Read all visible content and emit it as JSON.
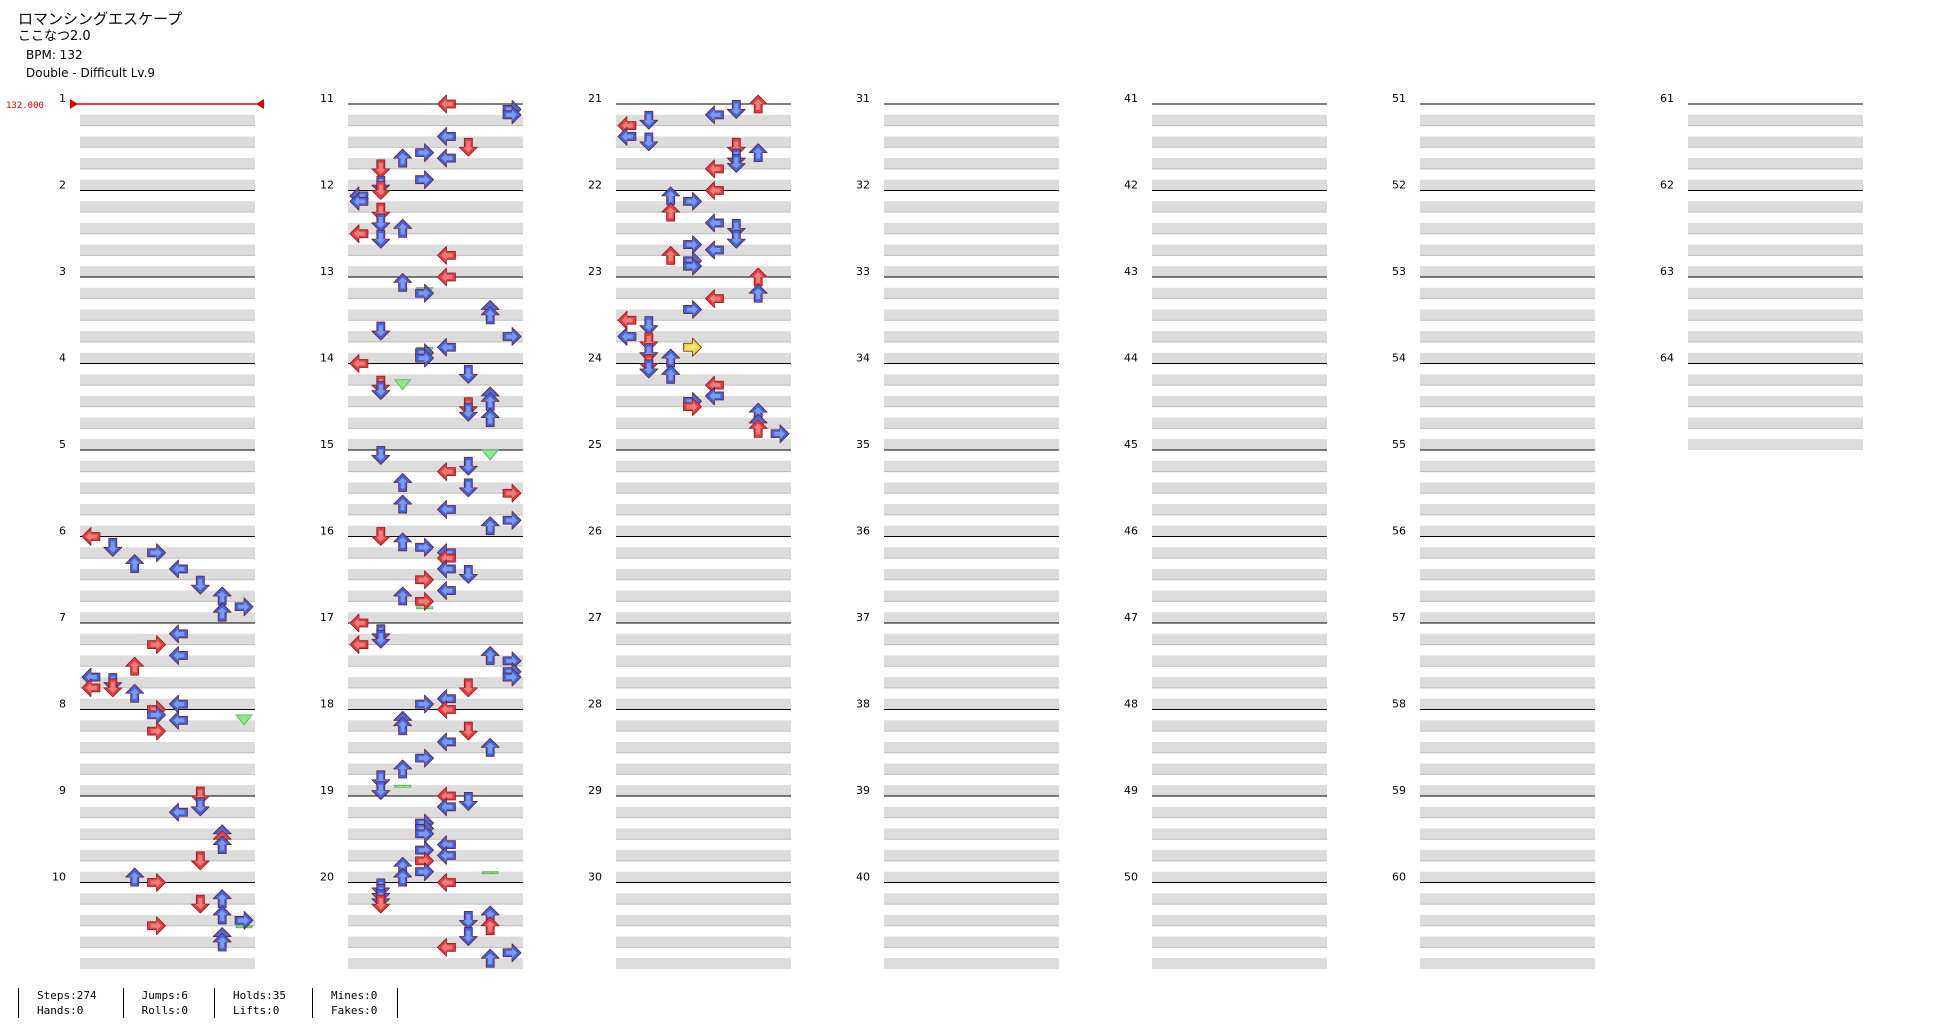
{
  "header": {
    "title": "ロマンシングエスケープ",
    "artist": "ここなつ2.0",
    "bpm": "BPM: 132",
    "difficulty": "Double - Difficult Lv.9"
  },
  "bpm_marker": "132.000",
  "stats": [
    {
      "a": "Steps:274",
      "b": "Hands:0"
    },
    {
      "a": "Jumps:6",
      "b": "Rolls:0"
    },
    {
      "a": "Holds:35",
      "b": "Lifts:0"
    },
    {
      "a": "Mines:0",
      "b": "Fakes:0"
    }
  ],
  "chart": {
    "measures": 64,
    "measures_per_column": 10,
    "lanes": 8,
    "colors": {
      "quarter": "#e83a3a",
      "eighth": "#3a64e8",
      "sixteenth": "#e8d83a",
      "hold": "#8ee88e",
      "stripe": "#dcdcdc",
      "bpm": "#e00000"
    },
    "notes": [
      [
        6,
        0,
        0
      ],
      [
        6,
        2,
        1
      ],
      [
        6,
        3,
        3
      ],
      [
        6,
        5,
        2
      ],
      [
        6,
        6,
        4
      ],
      [
        6,
        9,
        5
      ],
      [
        6,
        11,
        6
      ],
      [
        6,
        13,
        7
      ],
      [
        6,
        14,
        6
      ],
      [
        7,
        2,
        4
      ],
      [
        7,
        4,
        3
      ],
      [
        7,
        6,
        4
      ],
      [
        7,
        8,
        2
      ],
      [
        7,
        10,
        0
      ],
      [
        7,
        11,
        1
      ],
      [
        7,
        12,
        1
      ],
      [
        7,
        12,
        0
      ],
      [
        7,
        13,
        2
      ],
      [
        7,
        15,
        4
      ],
      [
        8,
        0,
        3
      ],
      [
        8,
        1,
        3
      ],
      [
        8,
        2,
        4
      ],
      [
        8,
        4,
        3
      ],
      [
        9,
        0,
        5
      ],
      [
        9,
        2,
        5
      ],
      [
        9,
        3,
        4
      ],
      [
        9,
        7,
        6
      ],
      [
        9,
        8,
        6
      ],
      [
        9,
        9,
        6
      ],
      [
        9,
        12,
        5
      ],
      [
        9,
        15,
        2
      ],
      [
        10,
        0,
        3
      ],
      [
        10,
        3,
        6
      ],
      [
        10,
        4,
        5
      ],
      [
        10,
        6,
        6
      ],
      [
        10,
        7,
        7
      ],
      [
        10,
        8,
        3
      ],
      [
        10,
        10,
        6
      ],
      [
        10,
        11,
        6
      ],
      [
        11,
        0,
        4
      ],
      [
        11,
        1,
        7
      ],
      [
        11,
        2,
        7
      ],
      [
        11,
        6,
        4
      ],
      [
        11,
        8,
        5
      ],
      [
        11,
        9,
        3
      ],
      [
        11,
        10,
        4
      ],
      [
        11,
        10,
        2
      ],
      [
        11,
        12,
        1
      ],
      [
        11,
        14,
        3
      ],
      [
        11,
        15,
        1
      ],
      [
        12,
        0,
        1
      ],
      [
        12,
        1,
        0
      ],
      [
        12,
        2,
        0
      ],
      [
        12,
        4,
        1
      ],
      [
        12,
        6,
        1
      ],
      [
        12,
        7,
        2
      ],
      [
        12,
        8,
        0
      ],
      [
        12,
        9,
        1
      ],
      [
        12,
        12,
        4
      ],
      [
        13,
        0,
        4
      ],
      [
        13,
        1,
        2
      ],
      [
        13,
        3,
        3
      ],
      [
        13,
        6,
        6
      ],
      [
        13,
        7,
        6
      ],
      [
        13,
        10,
        1
      ],
      [
        13,
        11,
        7
      ],
      [
        13,
        13,
        4
      ],
      [
        13,
        14,
        3
      ],
      [
        13,
        15,
        3
      ],
      [
        14,
        0,
        0
      ],
      [
        14,
        2,
        5
      ],
      [
        14,
        4,
        1
      ],
      [
        14,
        5,
        1
      ],
      [
        14,
        6,
        6
      ],
      [
        14,
        7,
        6
      ],
      [
        14,
        8,
        5
      ],
      [
        14,
        9,
        5
      ],
      [
        14,
        10,
        6
      ],
      [
        15,
        1,
        1
      ],
      [
        15,
        3,
        5
      ],
      [
        15,
        4,
        4
      ],
      [
        15,
        6,
        2
      ],
      [
        15,
        7,
        5
      ],
      [
        15,
        8,
        7
      ],
      [
        15,
        10,
        2
      ],
      [
        15,
        11,
        4
      ],
      [
        15,
        13,
        7
      ],
      [
        15,
        14,
        6
      ],
      [
        16,
        0,
        1
      ],
      [
        16,
        1,
        2
      ],
      [
        16,
        2,
        3
      ],
      [
        16,
        3,
        4
      ],
      [
        16,
        4,
        4
      ],
      [
        16,
        6,
        4
      ],
      [
        16,
        7,
        5
      ],
      [
        16,
        8,
        3
      ],
      [
        16,
        10,
        4
      ],
      [
        16,
        11,
        2
      ],
      [
        16,
        12,
        3
      ],
      [
        17,
        0,
        0
      ],
      [
        17,
        2,
        1
      ],
      [
        17,
        3,
        1
      ],
      [
        17,
        4,
        0
      ],
      [
        17,
        6,
        6
      ],
      [
        17,
        7,
        7
      ],
      [
        17,
        9,
        7
      ],
      [
        17,
        10,
        7
      ],
      [
        17,
        12,
        5
      ],
      [
        17,
        14,
        4
      ],
      [
        17,
        15,
        3
      ],
      [
        18,
        0,
        4
      ],
      [
        18,
        2,
        2
      ],
      [
        18,
        3,
        2
      ],
      [
        18,
        4,
        5
      ],
      [
        18,
        6,
        4
      ],
      [
        18,
        7,
        6
      ],
      [
        18,
        9,
        3
      ],
      [
        18,
        11,
        2
      ],
      [
        18,
        13,
        1
      ],
      [
        18,
        15,
        1
      ],
      [
        19,
        0,
        4
      ],
      [
        19,
        1,
        5
      ],
      [
        19,
        2,
        4
      ],
      [
        19,
        5,
        3
      ],
      [
        19,
        6,
        3
      ],
      [
        19,
        7,
        3
      ],
      [
        19,
        9,
        4
      ],
      [
        19,
        10,
        3
      ],
      [
        19,
        11,
        4
      ],
      [
        19,
        12,
        3
      ],
      [
        19,
        13,
        2
      ],
      [
        19,
        14,
        3
      ],
      [
        19,
        15,
        2
      ],
      [
        20,
        0,
        4
      ],
      [
        20,
        1,
        1
      ],
      [
        20,
        2,
        1
      ],
      [
        20,
        3,
        1
      ],
      [
        20,
        4,
        1
      ],
      [
        20,
        6,
        6
      ],
      [
        20,
        7,
        5
      ],
      [
        20,
        8,
        6
      ],
      [
        20,
        10,
        5
      ],
      [
        20,
        12,
        4
      ],
      [
        20,
        13,
        7
      ],
      [
        20,
        14,
        6
      ],
      [
        21,
        0,
        6
      ],
      [
        21,
        1,
        5
      ],
      [
        21,
        2,
        4
      ],
      [
        21,
        3,
        1
      ],
      [
        21,
        4,
        0
      ],
      [
        21,
        6,
        0
      ],
      [
        21,
        7,
        1
      ],
      [
        21,
        8,
        5
      ],
      [
        21,
        9,
        6
      ],
      [
        21,
        10,
        5
      ],
      [
        21,
        11,
        5
      ],
      [
        21,
        12,
        4
      ],
      [
        22,
        0,
        4
      ],
      [
        22,
        1,
        2
      ],
      [
        22,
        2,
        3
      ],
      [
        22,
        4,
        2
      ],
      [
        22,
        6,
        4
      ],
      [
        22,
        7,
        5
      ],
      [
        22,
        9,
        5
      ],
      [
        22,
        10,
        3
      ],
      [
        22,
        11,
        4
      ],
      [
        22,
        12,
        2
      ],
      [
        22,
        13,
        3
      ],
      [
        22,
        14,
        3
      ],
      [
        23,
        0,
        6
      ],
      [
        23,
        3,
        6
      ],
      [
        23,
        4,
        4
      ],
      [
        23,
        6,
        3
      ],
      [
        23,
        8,
        0
      ],
      [
        23,
        9,
        1
      ],
      [
        23,
        11,
        0
      ],
      [
        23,
        12,
        1
      ],
      [
        23,
        14,
        1
      ],
      [
        23,
        15,
        2
      ],
      [
        24,
        0,
        1
      ],
      [
        24,
        1,
        1
      ],
      [
        24,
        2,
        2
      ],
      [
        24,
        4,
        4
      ],
      [
        24,
        6,
        4
      ],
      [
        24,
        7,
        3
      ],
      [
        24,
        8,
        3
      ],
      [
        24,
        9,
        6
      ],
      [
        24,
        11,
        6
      ],
      [
        24,
        12,
        6
      ],
      [
        24,
        13,
        7
      ]
    ],
    "holds": [
      [
        10,
        0,
        3,
        0,
        1
      ],
      [
        10,
        8,
        7,
        8,
        1
      ],
      [
        12,
        6,
        4,
        6,
        2
      ],
      [
        13,
        5,
        3,
        5,
        1
      ],
      [
        13,
        10,
        0,
        10,
        1
      ],
      [
        13,
        13,
        3,
        13,
        2
      ],
      [
        14,
        3,
        2,
        3,
        4
      ],
      [
        15,
        6,
        2,
        6,
        4
      ],
      [
        16,
        6,
        3,
        6,
        2
      ],
      [
        16,
        10,
        2,
        10,
        1
      ],
      [
        16,
        13,
        3,
        13,
        2
      ],
      [
        17,
        7,
        5,
        7,
        5
      ],
      [
        18,
        9,
        4,
        9,
        2
      ],
      [
        18,
        14,
        2,
        14,
        3
      ],
      [
        19,
        2,
        6,
        2,
        4
      ],
      [
        19,
        9,
        3,
        9,
        2
      ],
      [
        19,
        14,
        6,
        15,
        0
      ],
      [
        20,
        5,
        2,
        5,
        1
      ],
      [
        21,
        8,
        5,
        8,
        2
      ],
      [
        21,
        12,
        1,
        12,
        2
      ],
      [
        22,
        10,
        2,
        10,
        3
      ],
      [
        23,
        7,
        4,
        7,
        4
      ],
      [
        24,
        1,
        2,
        1,
        3
      ],
      [
        24,
        8,
        6,
        8,
        2
      ],
      [
        24,
        10,
        5,
        10,
        2
      ],
      [
        24,
        12,
        4,
        12,
        3
      ],
      [
        24,
        14,
        3,
        14,
        3
      ]
    ],
    "yellow": [
      [
        23,
        13,
        3
      ]
    ]
  }
}
